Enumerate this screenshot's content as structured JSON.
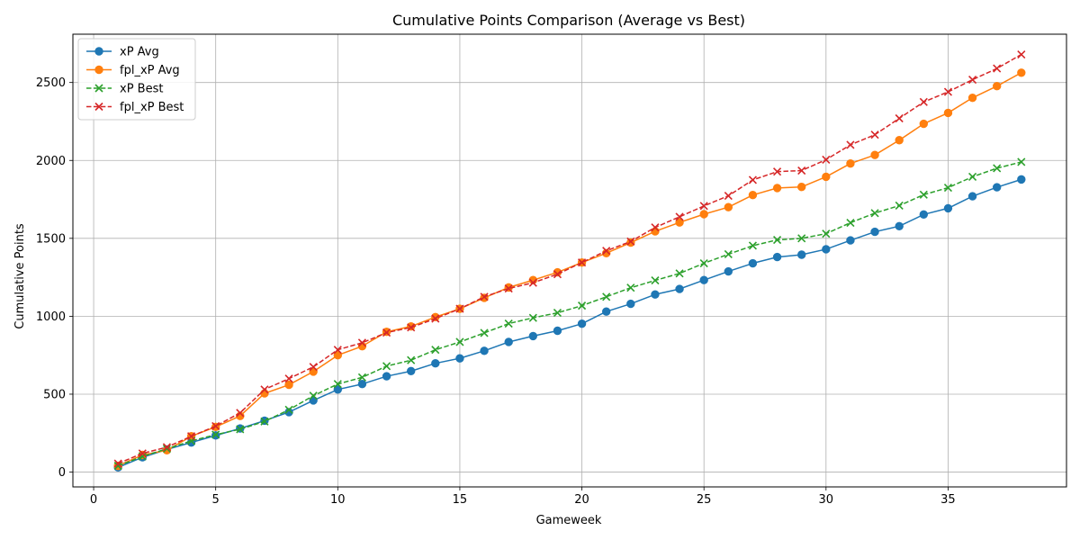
{
  "chart_data": {
    "type": "line",
    "title": "Cumulative Points Comparison (Average vs Best)",
    "xlabel": "Gameweek",
    "ylabel": "Cumulative Points",
    "xlim": [
      -0.85,
      39.85
    ],
    "ylim": [
      -95,
      2810
    ],
    "xticks": [
      0,
      5,
      10,
      15,
      20,
      25,
      30,
      35
    ],
    "yticks": [
      0,
      500,
      1000,
      1500,
      2000,
      2500
    ],
    "grid": true,
    "legend_position": "upper left",
    "x": [
      1,
      2,
      3,
      4,
      5,
      6,
      7,
      8,
      9,
      10,
      11,
      12,
      13,
      14,
      15,
      16,
      17,
      18,
      19,
      20,
      21,
      22,
      23,
      24,
      25,
      26,
      27,
      28,
      29,
      30,
      31,
      32,
      33,
      34,
      35,
      36,
      37,
      38
    ],
    "series": [
      {
        "name": "xP Avg",
        "color": "#1f77b4",
        "linestyle": "solid",
        "marker": "circle",
        "values": [
          30,
          95,
          145,
          190,
          235,
          280,
          330,
          385,
          460,
          530,
          565,
          615,
          648,
          698,
          730,
          778,
          835,
          873,
          907,
          952,
          1030,
          1080,
          1140,
          1175,
          1232,
          1288,
          1340,
          1380,
          1395,
          1430,
          1487,
          1542,
          1578,
          1653,
          1693,
          1770,
          1828,
          1878
        ]
      },
      {
        "name": "fpl_xP Avg",
        "color": "#ff7f0e",
        "linestyle": "solid",
        "marker": "circle",
        "values": [
          40,
          110,
          140,
          230,
          290,
          360,
          505,
          560,
          645,
          750,
          808,
          900,
          935,
          995,
          1048,
          1118,
          1185,
          1232,
          1282,
          1345,
          1405,
          1473,
          1545,
          1602,
          1655,
          1700,
          1778,
          1823,
          1830,
          1895,
          1980,
          2035,
          2130,
          2235,
          2305,
          2402,
          2477,
          2563
        ]
      },
      {
        "name": "xP Best",
        "color": "#2ca02c",
        "linestyle": "dashed",
        "marker": "x",
        "values": [
          40,
          100,
          150,
          200,
          240,
          275,
          325,
          400,
          490,
          565,
          608,
          680,
          718,
          785,
          835,
          893,
          953,
          990,
          1022,
          1068,
          1125,
          1183,
          1230,
          1275,
          1340,
          1398,
          1453,
          1490,
          1500,
          1530,
          1600,
          1662,
          1710,
          1780,
          1825,
          1895,
          1950,
          1990
        ]
      },
      {
        "name": "fpl_xP Best",
        "color": "#d62728",
        "linestyle": "dashed",
        "marker": "x",
        "values": [
          55,
          120,
          160,
          230,
          295,
          380,
          530,
          600,
          675,
          785,
          830,
          895,
          928,
          985,
          1048,
          1125,
          1178,
          1215,
          1270,
          1345,
          1420,
          1480,
          1570,
          1638,
          1708,
          1773,
          1875,
          1928,
          1935,
          2005,
          2100,
          2165,
          2270,
          2375,
          2440,
          2518,
          2590,
          2680
        ]
      }
    ]
  }
}
